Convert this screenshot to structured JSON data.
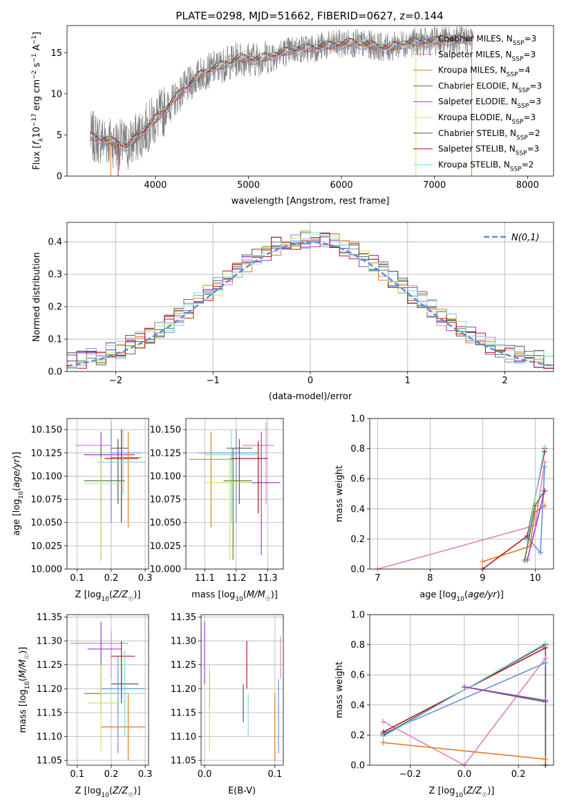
{
  "figure_title": "PLATE=0298, MJD=51662, FIBERID=0627, z=0.144",
  "colors": {
    "Chabrier MILES": "#6a8ed8",
    "Salpeter MILES": "#e27fc0",
    "Kroupa MILES": "#e07b20",
    "Chabrier ELODIE": "#4a7a4a",
    "Salpeter ELODIE": "#9b3ac4",
    "Kroupa ELODIE": "#d4e060",
    "Chabrier STELIB": "#555555",
    "Salpeter STELIB": "#b01818",
    "Kroupa STELIB": "#7fd8e0",
    "data": "#7f7f7f",
    "normal": "#5b8dd6"
  },
  "chart_data": [
    {
      "id": "spectrum",
      "type": "line",
      "title": "PLATE=0298, MJD=51662, FIBERID=0627, z=0.144",
      "xlabel": "wavelength [Angstrom, rest frame]",
      "ylabel": "Flux [f_λ 10^-17 erg cm^-2 s^-1 A^-1]",
      "xlim": [
        3050,
        8280
      ],
      "ylim": [
        0,
        18.3
      ],
      "xticks": [
        4000,
        5000,
        6000,
        7000,
        8000
      ],
      "yticks": [
        0,
        5,
        10,
        15
      ],
      "grid": false,
      "legend_position": "upper right",
      "continuum_x": [
        3300,
        3500,
        3700,
        3900,
        4100,
        4300,
        4500,
        4700,
        4900,
        5100,
        5300,
        5500,
        5700,
        5900,
        6100,
        6300,
        6500,
        6700,
        6900,
        7100,
        7300,
        7400
      ],
      "continuum_y": [
        4.8,
        4.3,
        3.6,
        5.8,
        8.0,
        10.5,
        12.5,
        13.4,
        14.3,
        14.2,
        14.8,
        15.4,
        15.6,
        15.9,
        16.2,
        15.9,
        15.6,
        16.2,
        16.3,
        16.5,
        16.6,
        16.7
      ],
      "series": [
        {
          "name": "Chabrier MILES, N_SSP=3",
          "color_key": "Chabrier MILES"
        },
        {
          "name": "Salpeter MILES, N_SSP=3",
          "color_key": "Salpeter MILES"
        },
        {
          "name": "Kroupa MILES, N_SSP=4",
          "color_key": "Kroupa MILES"
        },
        {
          "name": "Chabrier ELODIE, N_SSP=3",
          "color_key": "Chabrier ELODIE"
        },
        {
          "name": "Salpeter ELODIE, N_SSP=3",
          "color_key": "Salpeter ELODIE"
        },
        {
          "name": "Kroupa ELODIE, N_SSP=3",
          "color_key": "Kroupa ELODIE"
        },
        {
          "name": "Chabrier STELIB, N_SSP=2",
          "color_key": "Chabrier STELIB"
        },
        {
          "name": "Salpeter STELIB, N_SSP=3",
          "color_key": "Salpeter STELIB"
        },
        {
          "name": "Kroupa STELIB, N_SSP=2",
          "color_key": "Kroupa STELIB"
        }
      ]
    },
    {
      "id": "residuals",
      "type": "histogram",
      "xlabel": "(data-model)/error",
      "ylabel": "Normed distribution",
      "xlim": [
        -2.5,
        2.5
      ],
      "ylim": [
        0,
        0.46
      ],
      "xticks": [
        -2,
        -1,
        0,
        1,
        2
      ],
      "yticks": [
        0.0,
        0.1,
        0.2,
        0.3,
        0.4
      ],
      "grid": true,
      "legend_position": "upper right",
      "legend": "N(0,1)",
      "bin_width": 0.1,
      "bin_start": -2.5
    },
    {
      "id": "age_vs_Z",
      "type": "errorbar",
      "xlabel": "Z [log10(Z/Z☉)]",
      "ylabel": "age  [log10(age/yr)]",
      "xlim": [
        0.07,
        0.31
      ],
      "ylim": [
        10.0,
        10.162
      ],
      "xticks": [
        0.1,
        0.2,
        0.3
      ],
      "yticks": [
        10.0,
        10.025,
        10.05,
        10.075,
        10.1,
        10.125,
        10.15
      ],
      "grid": true,
      "points": [
        {
          "series": "Salpeter MILES",
          "x": 0.2,
          "y": 10.133,
          "xerr": [
            0.2,
            0.095
          ],
          "yerr": [
            10.055,
            10.158
          ]
        },
        {
          "series": "Salpeter ELODIE",
          "x": 0.17,
          "y": 10.123,
          "xerr": [
            0.12,
            0.27
          ],
          "yerr": [
            10.07,
            10.148
          ]
        },
        {
          "series": "Chabrier MILES",
          "x": 0.2,
          "y": 10.125,
          "xerr": [
            0.2,
            0.29
          ],
          "yerr": [
            10.05,
            10.15
          ]
        },
        {
          "series": "Chabrier STELIB",
          "x": 0.22,
          "y": 10.13,
          "xerr": [
            0.2,
            0.25
          ],
          "yerr": [
            10.07,
            10.14
          ]
        },
        {
          "series": "Salpeter STELIB",
          "x": 0.23,
          "y": 10.119,
          "xerr": [
            0.18,
            0.28
          ],
          "yerr": [
            10.05,
            10.15
          ]
        },
        {
          "series": "Kroupa MILES",
          "x": 0.25,
          "y": 10.12,
          "xerr": [
            0.2,
            0.29
          ],
          "yerr": [
            10.045,
            10.148
          ]
        },
        {
          "series": "Kroupa STELIB",
          "x": 0.235,
          "y": 10.115,
          "xerr": [
            0.16,
            0.3
          ],
          "yerr": [
            10.08,
            10.15
          ]
        },
        {
          "series": "Chabrier ELODIE",
          "x": 0.17,
          "y": 10.095,
          "xerr": [
            0.12,
            0.24
          ],
          "yerr": [
            10.01,
            10.13
          ]
        },
        {
          "series": "Kroupa ELODIE",
          "x": 0.17,
          "y": 10.092,
          "xerr": [
            0.12,
            0.23
          ],
          "yerr": [
            10.008,
            10.12
          ]
        }
      ]
    },
    {
      "id": "age_vs_mass",
      "type": "errorbar",
      "xlabel": "mass [log10(M/M☉)]",
      "ylabel": "",
      "xlim": [
        11.04,
        11.35
      ],
      "ylim": [
        10.0,
        10.162
      ],
      "xticks": [
        11.1,
        11.2,
        11.3
      ],
      "yticks": [
        10.0,
        10.025,
        10.05,
        10.075,
        10.1,
        10.125,
        10.15
      ],
      "grid": true,
      "points": [
        {
          "series": "Salpeter MILES",
          "x": 11.295,
          "y": 10.133,
          "xerr": [
            11.22,
            11.32
          ],
          "yerr": [
            10.07,
            10.158
          ]
        },
        {
          "series": "Salpeter ELODIE",
          "x": 11.28,
          "y": 10.093,
          "xerr": [
            11.21,
            11.34
          ],
          "yerr": [
            10.015,
            10.148
          ]
        },
        {
          "series": "Chabrier MILES",
          "x": 11.2,
          "y": 10.125,
          "xerr": [
            11.08,
            11.27
          ],
          "yerr": [
            10.05,
            10.15
          ]
        },
        {
          "series": "Chabrier STELIB",
          "x": 11.21,
          "y": 10.13,
          "xerr": [
            11.17,
            11.25
          ],
          "yerr": [
            10.07,
            10.14
          ]
        },
        {
          "series": "Salpeter STELIB",
          "x": 11.27,
          "y": 10.119,
          "xerr": [
            11.18,
            11.3
          ],
          "yerr": [
            10.06,
            10.138
          ]
        },
        {
          "series": "Kroupa MILES",
          "x": 11.12,
          "y": 10.118,
          "xerr": [
            11.05,
            11.19
          ],
          "yerr": [
            10.045,
            10.148
          ]
        },
        {
          "series": "Kroupa STELIB",
          "x": 11.185,
          "y": 10.123,
          "xerr": [
            11.1,
            11.28
          ],
          "yerr": [
            10.05,
            10.15
          ]
        },
        {
          "series": "Chabrier ELODIE",
          "x": 11.19,
          "y": 10.095,
          "xerr": [
            11.16,
            11.25
          ],
          "yerr": [
            10.01,
            10.13
          ]
        },
        {
          "series": "Kroupa ELODIE",
          "x": 11.18,
          "y": 10.093,
          "xerr": [
            11.1,
            11.25
          ],
          "yerr": [
            10.01,
            10.12
          ]
        }
      ]
    },
    {
      "id": "weight_vs_age",
      "type": "line",
      "xlabel": "age  [log10(age/yr)]",
      "ylabel": "mass weight",
      "xlim": [
        6.85,
        10.35
      ],
      "ylim": [
        0,
        1.0
      ],
      "xticks": [
        7,
        8,
        9,
        10
      ],
      "yticks": [
        0.0,
        0.2,
        0.4,
        0.6,
        0.8,
        1.0
      ],
      "grid": true,
      "series": [
        {
          "color_key": "Salpeter MILES",
          "x": [
            7.0,
            10.0,
            10.18
          ],
          "y": [
            0.0,
            0.29,
            0.71
          ]
        },
        {
          "color_key": "Kroupa MILES",
          "x": [
            9.0,
            9.9,
            10.0,
            10.18
          ],
          "y": [
            0.05,
            0.15,
            0.38,
            0.42
          ]
        },
        {
          "color_key": "Chabrier MILES",
          "x": [
            9.85,
            10.1,
            10.18
          ],
          "y": [
            0.21,
            0.11,
            0.68
          ]
        },
        {
          "color_key": "Salpeter STELIB",
          "x": [
            9.0,
            9.85,
            10.18
          ],
          "y": [
            0.0,
            0.22,
            0.78
          ]
        },
        {
          "color_key": "Chabrier STELIB",
          "x": [
            9.85,
            10.18
          ],
          "y": [
            0.2,
            0.8
          ]
        },
        {
          "color_key": "Kroupa STELIB",
          "x": [
            9.85,
            10.18
          ],
          "y": [
            0.19,
            0.81
          ]
        },
        {
          "color_key": "Kroupa ELODIE",
          "x": [
            9.8,
            10.0,
            10.18
          ],
          "y": [
            0.05,
            0.43,
            0.52
          ]
        },
        {
          "color_key": "Chabrier ELODIE",
          "x": [
            9.8,
            10.0,
            10.18
          ],
          "y": [
            0.06,
            0.42,
            0.52
          ]
        },
        {
          "color_key": "Salpeter ELODIE",
          "x": [
            9.85,
            10.18
          ],
          "y": [
            0.06,
            0.52
          ]
        }
      ]
    },
    {
      "id": "mass_vs_Z",
      "type": "errorbar",
      "xlabel": "Z [log10(Z/Z☉)]",
      "ylabel": "mass [log10(M/M☉)]",
      "xlim": [
        0.07,
        0.31
      ],
      "ylim": [
        11.04,
        11.355
      ],
      "xticks": [
        0.1,
        0.2,
        0.3
      ],
      "yticks": [
        11.05,
        11.1,
        11.15,
        11.2,
        11.25,
        11.3,
        11.35
      ],
      "grid": true,
      "points": [
        {
          "series": "Salpeter MILES",
          "x": 0.2,
          "y": 11.295,
          "xerr": [
            0.08,
            0.25
          ],
          "yerr": [
            11.22,
            11.32
          ]
        },
        {
          "series": "Salpeter ELODIE",
          "x": 0.17,
          "y": 11.283,
          "xerr": [
            0.13,
            0.23
          ],
          "yerr": [
            11.21,
            11.34
          ]
        },
        {
          "series": "Salpeter STELIB",
          "x": 0.23,
          "y": 11.268,
          "xerr": [
            0.2,
            0.27
          ],
          "yerr": [
            11.18,
            11.3
          ]
        },
        {
          "series": "Chabrier STELIB",
          "x": 0.23,
          "y": 11.21,
          "xerr": [
            0.2,
            0.28
          ],
          "yerr": [
            11.17,
            11.25
          ]
        },
        {
          "series": "Chabrier MILES",
          "x": 0.22,
          "y": 11.2,
          "xerr": [
            0.17,
            0.3
          ],
          "yerr": [
            11.065,
            11.27
          ]
        },
        {
          "series": "Chabrier ELODIE",
          "x": 0.17,
          "y": 11.19,
          "xerr": [
            0.12,
            0.25
          ],
          "yerr": [
            11.16,
            11.25
          ]
        },
        {
          "series": "Kroupa STELIB",
          "x": 0.24,
          "y": 11.19,
          "xerr": [
            0.17,
            0.3
          ],
          "yerr": [
            11.1,
            11.28
          ]
        },
        {
          "series": "Kroupa ELODIE",
          "x": 0.17,
          "y": 11.17,
          "xerr": [
            0.13,
            0.23
          ],
          "yerr": [
            11.07,
            11.25
          ]
        },
        {
          "series": "Kroupa MILES",
          "x": 0.25,
          "y": 11.12,
          "xerr": [
            0.17,
            0.3
          ],
          "yerr": [
            11.05,
            11.19
          ]
        }
      ]
    },
    {
      "id": "mass_vs_ebv",
      "type": "errorbar",
      "xlabel": "E(B-V)",
      "ylabel": "",
      "xlim": [
        -0.005,
        0.112
      ],
      "ylim": [
        11.04,
        11.355
      ],
      "xticks": [
        0.0,
        0.1
      ],
      "yticks": [
        11.05,
        11.1,
        11.15,
        11.2,
        11.25,
        11.3,
        11.35
      ],
      "grid": true,
      "points": [
        {
          "series": "Salpeter ELODIE",
          "x": 0.0,
          "y": 11.28,
          "yerr": [
            11.21,
            11.34
          ]
        },
        {
          "series": "Chabrier ELODIE",
          "x": 0.007,
          "y": 11.2,
          "yerr": [
            11.16,
            11.235
          ]
        },
        {
          "series": "Kroupa ELODIE",
          "x": 0.007,
          "y": 11.15,
          "yerr": [
            11.07,
            11.25
          ]
        },
        {
          "series": "Chabrier STELIB",
          "x": 0.055,
          "y": 11.17,
          "yerr": [
            11.13,
            11.21
          ]
        },
        {
          "series": "Salpeter STELIB",
          "x": 0.06,
          "y": 11.26,
          "yerr": [
            11.2,
            11.3
          ]
        },
        {
          "series": "Kroupa STELIB",
          "x": 0.062,
          "y": 11.15,
          "yerr": [
            11.1,
            11.19
          ]
        },
        {
          "series": "Kroupa MILES",
          "x": 0.1,
          "y": 11.12,
          "yerr": [
            11.05,
            11.19
          ]
        },
        {
          "series": "Chabrier MILES",
          "x": 0.105,
          "y": 11.15,
          "yerr": [
            11.065,
            11.22
          ]
        },
        {
          "series": "Salpeter MILES",
          "x": 0.108,
          "y": 11.27,
          "yerr": [
            11.22,
            11.31
          ]
        }
      ]
    },
    {
      "id": "weight_vs_Z",
      "type": "line",
      "xlabel": "Z [log10(Z/Z☉)]",
      "ylabel": "mass weight",
      "xlim": [
        -0.35,
        0.33
      ],
      "ylim": [
        0,
        1.0
      ],
      "xticks": [
        -0.2,
        0.0,
        0.2
      ],
      "yticks": [
        0.0,
        0.2,
        0.4,
        0.6,
        0.8,
        1.0
      ],
      "grid": true,
      "series": [
        {
          "color_key": "Salpeter MILES",
          "x": [
            -0.3,
            0.0,
            0.3
          ],
          "y": [
            0.29,
            0.0,
            0.71
          ]
        },
        {
          "color_key": "Kroupa MILES",
          "x": [
            -0.3,
            0.3
          ],
          "y": [
            0.15,
            0.04
          ]
        },
        {
          "color_key": "Chabrier MILES",
          "x": [
            -0.3,
            0.3
          ],
          "y": [
            0.21,
            0.68
          ]
        },
        {
          "color_key": "Salpeter STELIB",
          "x": [
            -0.3,
            0.3,
            0.3
          ],
          "y": [
            0.22,
            0.78,
            0.0
          ]
        },
        {
          "color_key": "Chabrier STELIB",
          "x": [
            -0.3,
            0.3,
            0.3
          ],
          "y": [
            0.2,
            0.8,
            0.0
          ]
        },
        {
          "color_key": "Kroupa STELIB",
          "x": [
            -0.3,
            0.3
          ],
          "y": [
            0.19,
            0.81
          ]
        },
        {
          "color_key": "Kroupa ELODIE",
          "x": [
            0.0,
            0.3
          ],
          "y": [
            0.52,
            0.43
          ]
        },
        {
          "color_key": "Chabrier ELODIE",
          "x": [
            0.0,
            0.3
          ],
          "y": [
            0.52,
            0.42
          ]
        },
        {
          "color_key": "Salpeter ELODIE",
          "x": [
            0.0,
            0.3
          ],
          "y": [
            0.52,
            0.43
          ]
        }
      ]
    }
  ]
}
